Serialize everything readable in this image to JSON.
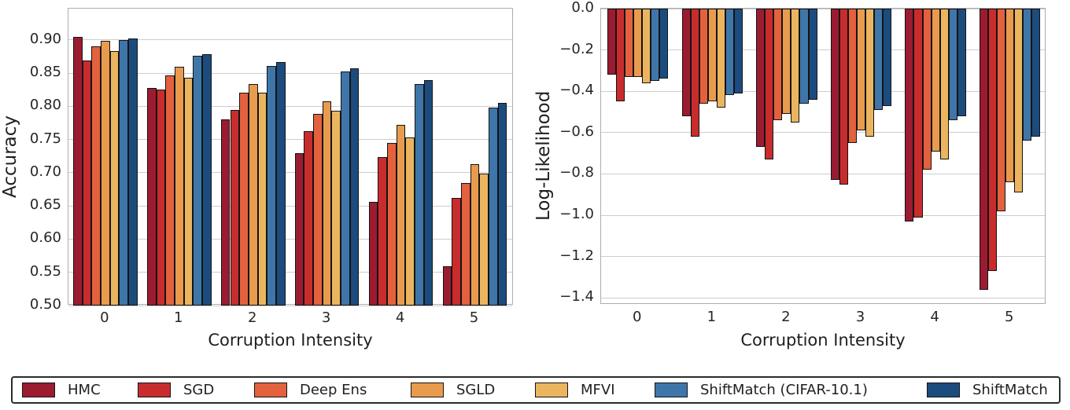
{
  "figure": {
    "background": "#ffffff",
    "grid_color": "#cdcdcd",
    "spine_color": "#adadad",
    "bar_edge_color": "#141414",
    "text_color": "#1f1f1f"
  },
  "palette": {
    "hmc": "#9B1C31",
    "sgd": "#C92C2D",
    "deep_ens": "#E4613D",
    "sgld": "#E99B4D",
    "mfvi": "#EBB560",
    "shiftmatch_cifar101": "#3F76AA",
    "shiftmatch": "#1C4C7E"
  },
  "legend": {
    "items": [
      {
        "label": "HMC",
        "color": "#9B1C31"
      },
      {
        "label": "SGD",
        "color": "#C92C2D"
      },
      {
        "label": "Deep Ens",
        "color": "#E4613D"
      },
      {
        "label": "SGLD",
        "color": "#E99B4D"
      },
      {
        "label": "MFVI",
        "color": "#EBB560"
      },
      {
        "label": "ShiftMatch (CIFAR-10.1)",
        "color": "#3F76AA"
      },
      {
        "label": "ShiftMatch",
        "color": "#1C4C7E"
      }
    ]
  },
  "chart_data": [
    {
      "type": "bar",
      "title": "",
      "xlabel": "Corruption Intensity",
      "ylabel": "Accuracy",
      "categories": [
        "0",
        "1",
        "2",
        "3",
        "4",
        "5"
      ],
      "ylim": [
        0.5,
        0.947
      ],
      "baseline": 0.5,
      "yticks": [
        0.5,
        0.55,
        0.6,
        0.65,
        0.7,
        0.75,
        0.8,
        0.85,
        0.9
      ],
      "ytick_labels": [
        "0.50",
        "0.55",
        "0.60",
        "0.65",
        "0.70",
        "0.75",
        "0.80",
        "0.85",
        "0.90"
      ],
      "grid": true,
      "legend_position": "shared-bottom",
      "series": [
        {
          "name": "HMC",
          "color": "#9B1C31",
          "values": [
            0.904,
            0.828,
            0.78,
            0.729,
            0.656,
            0.559
          ]
        },
        {
          "name": "SGD",
          "color": "#C92C2D",
          "values": [
            0.869,
            0.825,
            0.795,
            0.763,
            0.723,
            0.662
          ]
        },
        {
          "name": "Deep Ens",
          "color": "#E4613D",
          "values": [
            0.89,
            0.847,
            0.82,
            0.789,
            0.745,
            0.684
          ]
        },
        {
          "name": "SGLD",
          "color": "#E99B4D",
          "values": [
            0.898,
            0.859,
            0.834,
            0.808,
            0.772,
            0.713
          ]
        },
        {
          "name": "MFVI",
          "color": "#EBB560",
          "values": [
            0.883,
            0.843,
            0.821,
            0.793,
            0.753,
            0.699
          ]
        },
        {
          "name": "ShiftMatch (CIFAR-10.1)",
          "color": "#3F76AA",
          "values": [
            0.9,
            0.876,
            0.861,
            0.852,
            0.833,
            0.798
          ]
        },
        {
          "name": "ShiftMatch",
          "color": "#1C4C7E",
          "values": [
            0.902,
            0.879,
            0.866,
            0.857,
            0.839,
            0.805
          ]
        }
      ]
    },
    {
      "type": "bar",
      "title": "",
      "xlabel": "Corruption Intensity",
      "ylabel": "Log-Likelihood",
      "categories": [
        "0",
        "1",
        "2",
        "3",
        "4",
        "5"
      ],
      "ylim": [
        -1.433,
        0.0
      ],
      "baseline": 0.0,
      "yticks": [
        0.0,
        -0.2,
        -0.4,
        -0.6,
        -0.8,
        -1.0,
        -1.2,
        -1.4
      ],
      "ytick_labels": [
        "0.0",
        "−0.2",
        "−0.4",
        "−0.6",
        "−0.8",
        "−1.0",
        "−1.2",
        "−1.4"
      ],
      "grid": true,
      "legend_position": "shared-bottom",
      "series": [
        {
          "name": "HMC",
          "color": "#9B1C31",
          "values": [
            -0.32,
            -0.52,
            -0.67,
            -0.83,
            -1.03,
            -1.36
          ]
        },
        {
          "name": "SGD",
          "color": "#C92C2D",
          "values": [
            -0.45,
            -0.62,
            -0.73,
            -0.85,
            -1.01,
            -1.27
          ]
        },
        {
          "name": "Deep Ens",
          "color": "#E4613D",
          "values": [
            -0.33,
            -0.46,
            -0.54,
            -0.65,
            -0.78,
            -0.98
          ]
        },
        {
          "name": "SGLD",
          "color": "#E99B4D",
          "values": [
            -0.33,
            -0.45,
            -0.51,
            -0.59,
            -0.69,
            -0.84
          ]
        },
        {
          "name": "MFVI",
          "color": "#EBB560",
          "values": [
            -0.36,
            -0.48,
            -0.55,
            -0.62,
            -0.73,
            -0.89
          ]
        },
        {
          "name": "ShiftMatch (CIFAR-10.1)",
          "color": "#3F76AA",
          "values": [
            -0.35,
            -0.42,
            -0.46,
            -0.49,
            -0.54,
            -0.64
          ]
        },
        {
          "name": "ShiftMatch",
          "color": "#1C4C7E",
          "values": [
            -0.34,
            -0.41,
            -0.44,
            -0.47,
            -0.52,
            -0.62
          ]
        }
      ]
    }
  ]
}
